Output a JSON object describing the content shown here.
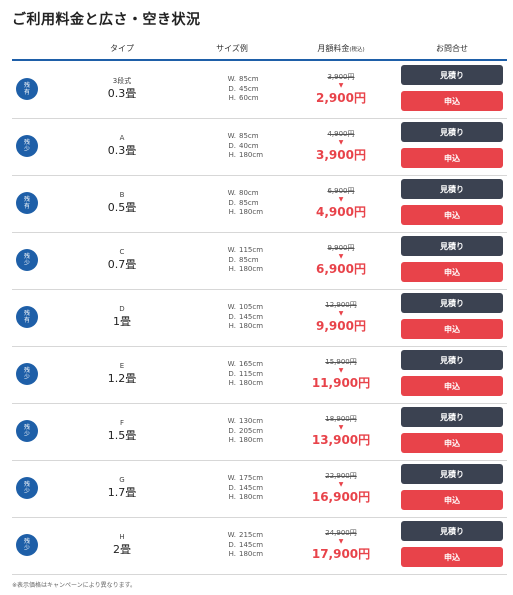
{
  "page": {
    "title": "ご利用料金と広さ・空き状況",
    "footnote": "※表示価格はキャンペーンにより異なります。"
  },
  "header": {
    "type": "タイプ",
    "size": "サイズ例",
    "price": "月額料金",
    "price_tax": "(税込)",
    "contact": "お問合せ"
  },
  "buttons": {
    "quote": "見積り",
    "apply": "申込"
  },
  "dim_labels": {
    "w": "W.",
    "d": "D.",
    "h": "H."
  },
  "price_arrow": "▼",
  "rows": [
    {
      "badge": [
        "残",
        "有"
      ],
      "code": "3段式",
      "size": "0.3畳",
      "w": "85cm",
      "d": "45cm",
      "h": "60cm",
      "old_price": "3,900円",
      "new_price": "2,900円"
    },
    {
      "badge": [
        "残",
        "少"
      ],
      "code": "A",
      "size": "0.3畳",
      "w": "85cm",
      "d": "40cm",
      "h": "180cm",
      "old_price": "4,900円",
      "new_price": "3,900円"
    },
    {
      "badge": [
        "残",
        "有"
      ],
      "code": "B",
      "size": "0.5畳",
      "w": "80cm",
      "d": "85cm",
      "h": "180cm",
      "old_price": "6,900円",
      "new_price": "4,900円"
    },
    {
      "badge": [
        "残",
        "少"
      ],
      "code": "C",
      "size": "0.7畳",
      "w": "115cm",
      "d": "85cm",
      "h": "180cm",
      "old_price": "9,900円",
      "new_price": "6,900円"
    },
    {
      "badge": [
        "残",
        "有"
      ],
      "code": "D",
      "size": "1畳",
      "w": "105cm",
      "d": "145cm",
      "h": "180cm",
      "old_price": "12,900円",
      "new_price": "9,900円"
    },
    {
      "badge": [
        "残",
        "少"
      ],
      "code": "E",
      "size": "1.2畳",
      "w": "165cm",
      "d": "115cm",
      "h": "180cm",
      "old_price": "15,900円",
      "new_price": "11,900円"
    },
    {
      "badge": [
        "残",
        "少"
      ],
      "code": "F",
      "size": "1.5畳",
      "w": "130cm",
      "d": "205cm",
      "h": "180cm",
      "old_price": "18,900円",
      "new_price": "13,900円"
    },
    {
      "badge": [
        "残",
        "少"
      ],
      "code": "G",
      "size": "1.7畳",
      "w": "175cm",
      "d": "145cm",
      "h": "180cm",
      "old_price": "22,900円",
      "new_price": "16,900円"
    },
    {
      "badge": [
        "残",
        "少"
      ],
      "code": "H",
      "size": "2畳",
      "w": "215cm",
      "d": "145cm",
      "h": "180cm",
      "old_price": "24,900円",
      "new_price": "17,900円"
    }
  ]
}
